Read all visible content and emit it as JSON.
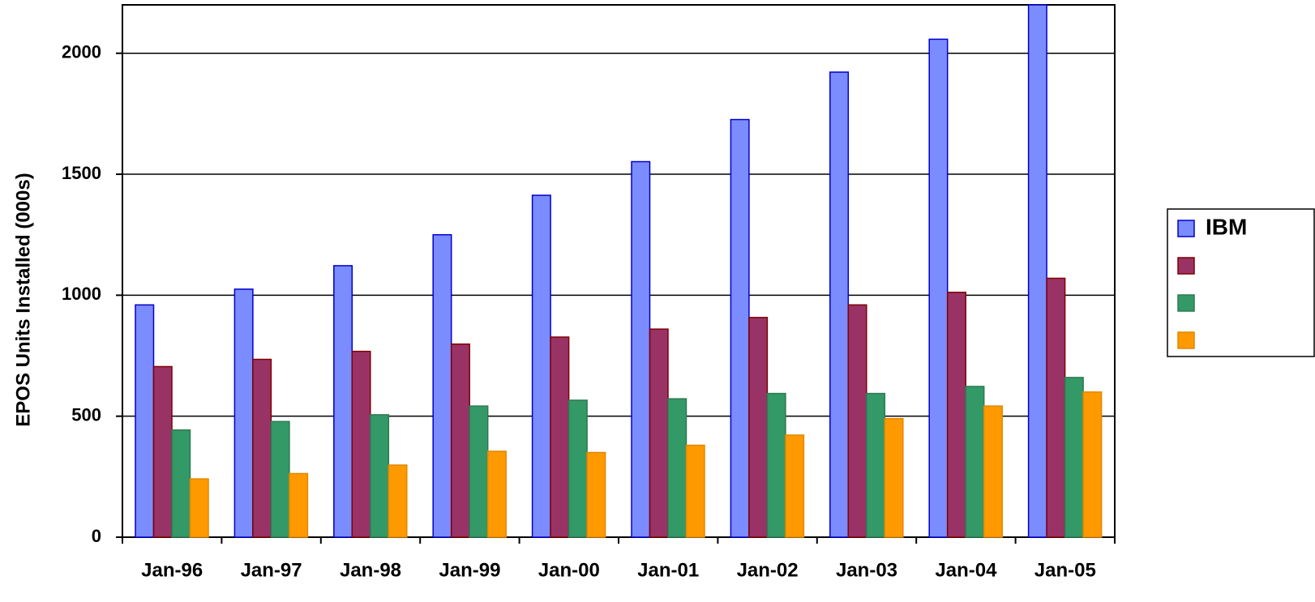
{
  "chart_data": {
    "type": "bar",
    "y_label": "EPOS Units Installed (000s)",
    "categories": [
      "Jan-96",
      "Jan-97",
      "Jan-98",
      "Jan-99",
      "Jan-00",
      "Jan-01",
      "Jan-02",
      "Jan-03",
      "Jan-04",
      "Jan-05"
    ],
    "series": [
      {
        "name": "IBM",
        "color": "#7b8cff",
        "values": [
          960,
          1025,
          1122,
          1250,
          1413,
          1552,
          1726,
          1922,
          2058,
          2200
        ]
      },
      {
        "color": "#993366",
        "values": [
          705,
          735,
          768,
          798,
          827,
          860,
          908,
          960,
          1012,
          1070
        ]
      },
      {
        "color": "#339966",
        "values": [
          443,
          478,
          506,
          542,
          566,
          572,
          594,
          594,
          623,
          660
        ]
      },
      {
        "color": "#ff9900",
        "values": [
          241,
          263,
          298,
          355,
          350,
          380,
          422,
          490,
          542,
          600
        ]
      }
    ],
    "ylim": [
      0,
      2200
    ],
    "yticks": [
      0,
      500,
      1000,
      1500,
      2000
    ],
    "grid": true,
    "legend": "right"
  }
}
